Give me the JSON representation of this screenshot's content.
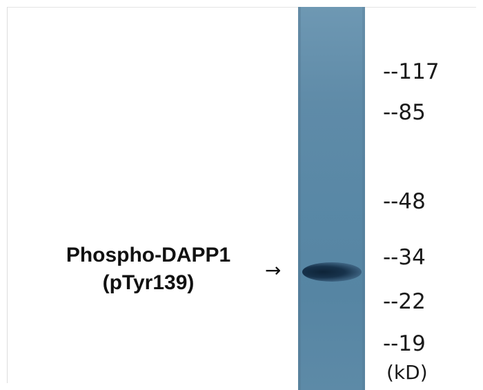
{
  "protein_label": {
    "line1": "Phospho-DAPP1",
    "line2": "(pTyr139)"
  },
  "arrow_glyph": "→",
  "markers": [
    {
      "label": "--117"
    },
    {
      "label": "--85"
    },
    {
      "label": "--48"
    },
    {
      "label": "--34"
    },
    {
      "label": "--22"
    },
    {
      "label": "--19"
    }
  ],
  "unit_label": "(kD)",
  "colors": {
    "lane": "#5f8ba8",
    "band": "#17324b",
    "text": "#111111"
  }
}
